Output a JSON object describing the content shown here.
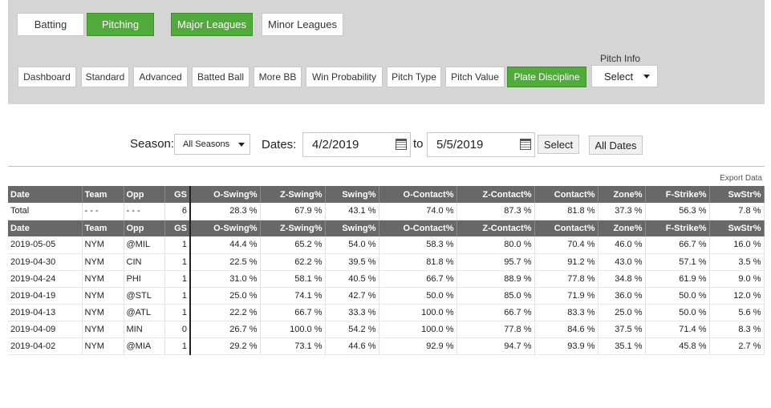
{
  "stat_type_tabs": [
    {
      "label": "Batting",
      "active": false
    },
    {
      "label": "Pitching",
      "active": true
    }
  ],
  "league_tabs": [
    {
      "label": "Major Leagues",
      "active": true
    },
    {
      "label": "Minor Leagues",
      "active": false
    }
  ],
  "view_tabs": [
    {
      "label": "Dashboard",
      "active": false
    },
    {
      "label": "Standard",
      "active": false
    },
    {
      "label": "Advanced",
      "active": false
    },
    {
      "label": "Batted Ball",
      "active": false
    },
    {
      "label": "More BB",
      "active": false
    },
    {
      "label": "Win Probability",
      "active": false
    },
    {
      "label": "Pitch Type",
      "active": false
    },
    {
      "label": "Pitch Value",
      "active": false
    },
    {
      "label": "Plate Discipline",
      "active": true
    }
  ],
  "pitch_info": {
    "label": "Pitch Info",
    "selected": "Select"
  },
  "filters": {
    "season_label": "Season:",
    "season_value": "All Seasons",
    "dates_label": "Dates:",
    "date_from": "4/2/2019",
    "to_label": "to",
    "date_to": "5/5/2019",
    "select_button": "Select",
    "all_dates_button": "All Dates"
  },
  "export_label": "Export Data",
  "table": {
    "headers": [
      "Date",
      "Team",
      "Opp",
      "GS",
      "O-Swing%",
      "Z-Swing%",
      "Swing%",
      "O-Contact%",
      "Z-Contact%",
      "Contact%",
      "Zone%",
      "F-Strike%",
      "SwStr%"
    ],
    "total_row": [
      "Total",
      "- - -",
      "- - -",
      "6",
      "28.3 %",
      "67.9 %",
      "43.1 %",
      "74.0 %",
      "87.3 %",
      "81.8 %",
      "37.3 %",
      "56.3 %",
      "7.8 %"
    ],
    "rows": [
      [
        "2019-05-05",
        "NYM",
        "@MIL",
        "1",
        "44.4 %",
        "65.2 %",
        "54.0 %",
        "58.3 %",
        "80.0 %",
        "70.4 %",
        "46.0 %",
        "66.7 %",
        "16.0 %"
      ],
      [
        "2019-04-30",
        "NYM",
        "CIN",
        "1",
        "22.5 %",
        "62.2 %",
        "39.5 %",
        "81.8 %",
        "95.7 %",
        "91.2 %",
        "43.0 %",
        "57.1 %",
        "3.5 %"
      ],
      [
        "2019-04-24",
        "NYM",
        "PHI",
        "1",
        "31.0 %",
        "58.1 %",
        "40.5 %",
        "66.7 %",
        "88.9 %",
        "77.8 %",
        "34.8 %",
        "61.9 %",
        "9.0 %"
      ],
      [
        "2019-04-19",
        "NYM",
        "@STL",
        "1",
        "25.0 %",
        "74.1 %",
        "42.7 %",
        "50.0 %",
        "85.0 %",
        "71.9 %",
        "36.0 %",
        "50.0 %",
        "12.0 %"
      ],
      [
        "2019-04-13",
        "NYM",
        "@ATL",
        "1",
        "22.2 %",
        "66.7 %",
        "33.3 %",
        "100.0 %",
        "66.7 %",
        "83.3 %",
        "25.0 %",
        "50.0 %",
        "5.6 %"
      ],
      [
        "2019-04-09",
        "NYM",
        "MIN",
        "0",
        "26.7 %",
        "100.0 %",
        "54.2 %",
        "100.0 %",
        "77.8 %",
        "84.6 %",
        "37.5 %",
        "71.4 %",
        "8.3 %"
      ],
      [
        "2019-04-02",
        "NYM",
        "@MIA",
        "1",
        "29.2 %",
        "73.1 %",
        "44.6 %",
        "92.9 %",
        "94.7 %",
        "93.9 %",
        "35.1 %",
        "45.8 %",
        "2.7 %"
      ]
    ]
  },
  "colors": {
    "accent_green": "#50ab3a",
    "header_gray": "#686868",
    "panel_gray": "#d5d5d5"
  }
}
